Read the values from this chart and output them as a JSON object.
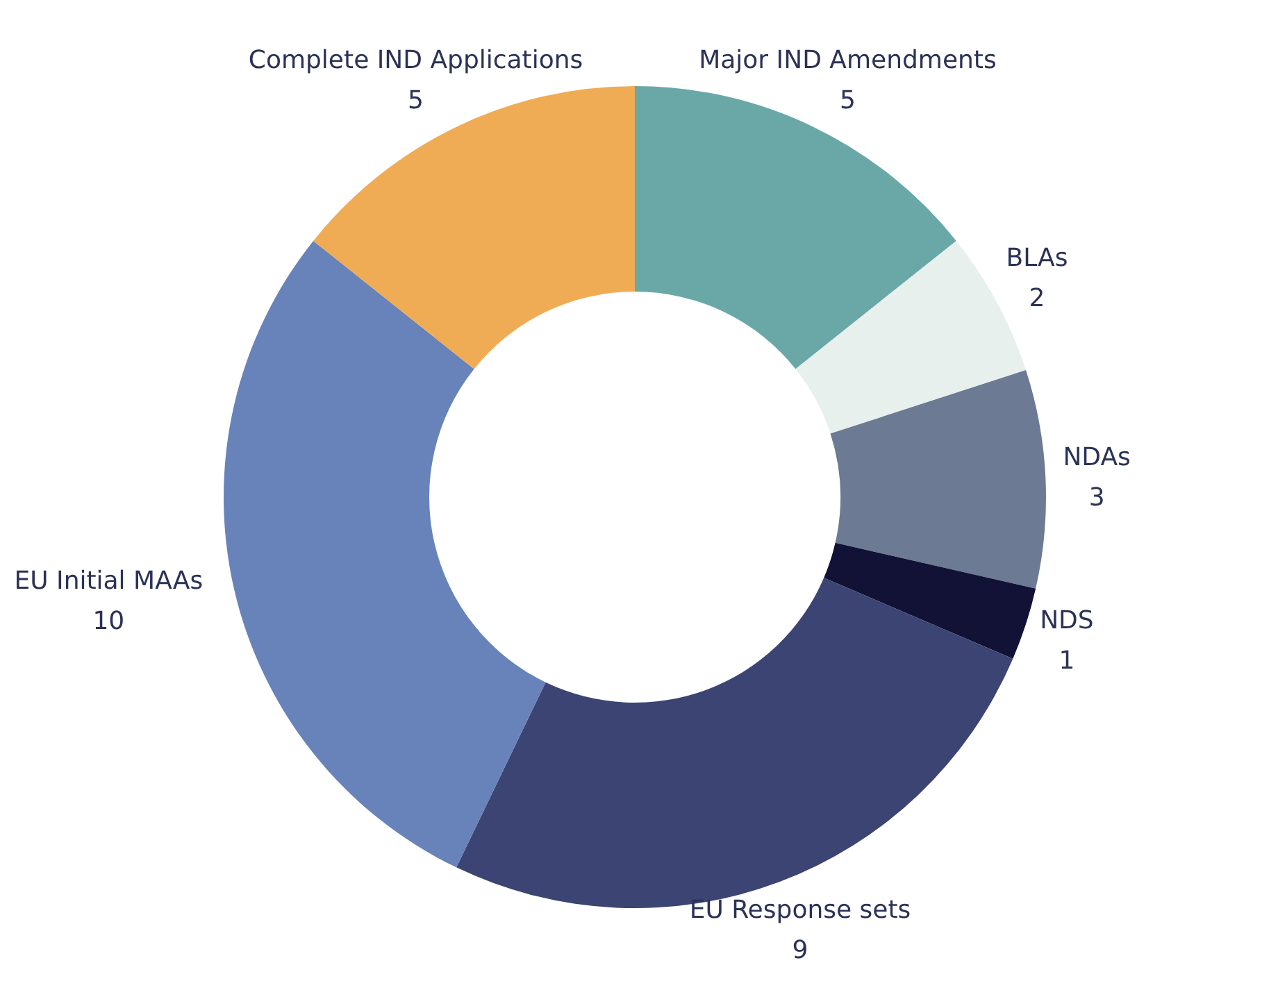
{
  "chart_data": {
    "type": "donut",
    "categories": [
      "Major IND Amendments",
      "BLAs",
      "NDAs",
      "NDS",
      "EU Response sets",
      "EU Initial MAAs",
      "Complete IND Applications"
    ],
    "values": [
      5,
      2,
      3,
      1,
      9,
      10,
      5
    ],
    "colors": [
      "#6aa8a8",
      "#e8f0ee",
      "#6c7a94",
      "#111236",
      "#3b4472",
      "#6783ba",
      "#f0ac54"
    ],
    "data_labels": true
  }
}
